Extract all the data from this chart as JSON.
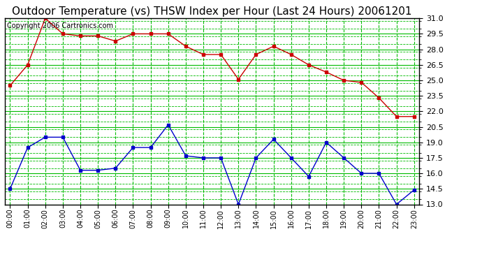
{
  "title": "Outdoor Temperature (vs) THSW Index per Hour (Last 24 Hours) 20061201",
  "copyright": "Copyright 2006 Cartronics.com",
  "hours": [
    "00:00",
    "01:00",
    "02:00",
    "03:00",
    "04:00",
    "05:00",
    "06:00",
    "07:00",
    "08:00",
    "09:00",
    "10:00",
    "11:00",
    "12:00",
    "13:00",
    "14:00",
    "15:00",
    "16:00",
    "17:00",
    "18:00",
    "19:00",
    "20:00",
    "21:00",
    "22:00",
    "23:00"
  ],
  "thsw": [
    24.5,
    26.5,
    31.0,
    29.5,
    29.3,
    29.3,
    28.8,
    29.5,
    29.5,
    29.5,
    28.3,
    27.5,
    27.5,
    25.1,
    27.5,
    28.3,
    27.5,
    26.5,
    25.8,
    25.0,
    24.8,
    23.3,
    21.5,
    21.5
  ],
  "temp": [
    14.5,
    18.5,
    19.5,
    19.5,
    16.3,
    16.3,
    16.5,
    18.5,
    18.5,
    20.7,
    17.7,
    17.5,
    17.5,
    13.0,
    17.5,
    19.3,
    17.5,
    15.7,
    19.0,
    17.5,
    16.0,
    16.0,
    13.0,
    14.4
  ],
  "ylim_min": 13.0,
  "ylim_max": 31.0,
  "yticks": [
    13.0,
    14.5,
    16.0,
    17.5,
    19.0,
    20.5,
    22.0,
    23.5,
    25.0,
    26.5,
    28.0,
    29.5,
    31.0
  ],
  "thsw_color": "#cc0000",
  "temp_color": "#0000cc",
  "bg_color": "#ffffff",
  "plot_bg_color": "#ffffff",
  "grid_color_major": "#00bb00",
  "grid_color_minor": "#00bb00",
  "title_fontsize": 11,
  "copyright_fontsize": 7
}
